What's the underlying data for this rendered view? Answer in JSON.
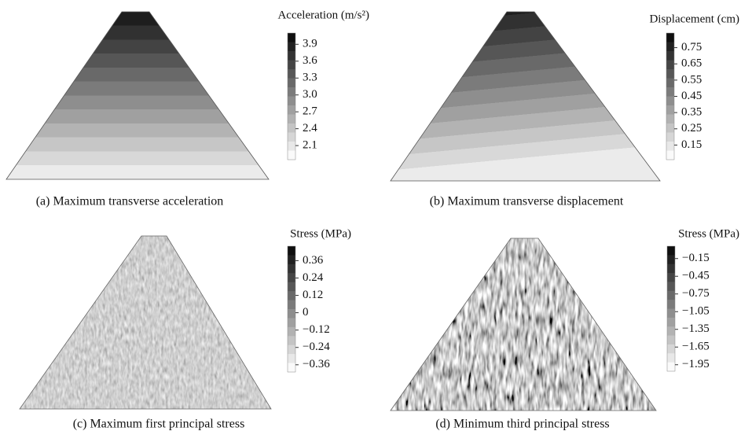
{
  "chart_data": [
    {
      "type": "contour",
      "title": "Acceleration (m/s²)",
      "caption": "(a) Maximum transverse acceleration",
      "clim": [
        1.85,
        4.1
      ],
      "cticks": [
        3.9,
        3.6,
        3.3,
        {
          "value": 3,
          "label": "3.0"
        },
        2.7,
        2.4,
        2.1
      ]
    },
    {
      "type": "contour",
      "title": "Displacement (cm)",
      "caption": "(b) Maximum transverse displacement",
      "clim": [
        0.06,
        0.84
      ],
      "cticks": [
        0.75,
        0.65,
        0.55,
        0.45,
        0.35,
        0.25,
        0.15
      ]
    },
    {
      "type": "contour",
      "title": "Stress (MPa)",
      "caption": "(c) Maximum first principal stress",
      "clim": [
        -0.41,
        0.46
      ],
      "cticks": [
        0.36,
        0.24,
        0.12,
        0,
        {
          "value": -0.12,
          "label": "−0.12"
        },
        {
          "value": -0.24,
          "label": "−0.24"
        },
        {
          "value": -0.36,
          "label": "−0.36"
        }
      ]
    },
    {
      "type": "contour",
      "title": "Stress (MPa)",
      "caption": "(d) Minimum third principal stress",
      "clim": [
        -2.06,
        0.06
      ],
      "cticks": [
        {
          "value": -0.15,
          "label": "−0.15"
        },
        {
          "value": -0.45,
          "label": "−0.45"
        },
        {
          "value": -0.75,
          "label": "−0.75"
        },
        {
          "value": -1.05,
          "label": "−1.05"
        },
        {
          "value": -1.35,
          "label": "−1.35"
        },
        {
          "value": -1.65,
          "label": "−1.65"
        },
        {
          "value": -1.95,
          "label": "−1.95"
        }
      ]
    }
  ]
}
